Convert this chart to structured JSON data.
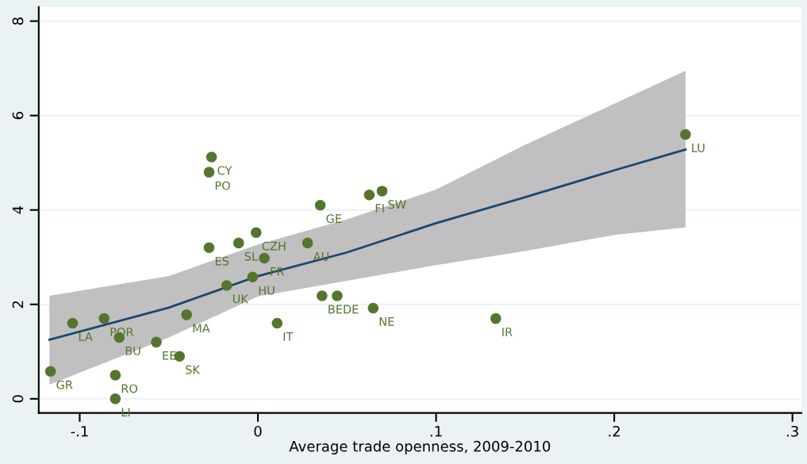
{
  "chart_data": {
    "type": "scatter",
    "xlabel": "Average trade openness, 2009-2010",
    "xlim": [
      -0.123,
      0.305
    ],
    "ylim": [
      -0.3,
      8.3
    ],
    "xticks": [
      {
        "value": -0.1,
        "label": "-.1"
      },
      0,
      {
        "value": 0.1,
        "label": ".1"
      },
      {
        "value": 0.2,
        "label": ".2"
      },
      {
        "value": 0.3,
        "label": ".3"
      }
    ],
    "yticks": [
      0,
      2,
      4,
      6,
      8
    ],
    "grid": "y",
    "series": [
      {
        "type": "line",
        "color": "#1a476f",
        "line_style": "solid",
        "marker": "none",
        "x": [
          -0.117,
          -0.05,
          0,
          0.05,
          0.1,
          0.15,
          0.2,
          0.24
        ],
        "values": [
          1.25,
          1.93,
          2.6,
          3.1,
          3.72,
          4.27,
          4.84,
          5.28
        ],
        "lower": [
          0.3,
          1.3,
          2.17,
          2.5,
          2.83,
          3.13,
          3.47,
          3.63
        ],
        "upper": [
          2.18,
          2.6,
          3.27,
          3.8,
          4.43,
          5.38,
          6.25,
          6.95
        ]
      },
      {
        "color": "#55752f",
        "marker": "circle",
        "x": [
          -0.1164,
          -0.104,
          -0.0863,
          -0.0778,
          -0.08,
          -0.08,
          -0.057,
          -0.044,
          -0.04,
          -0.0175,
          -0.0274,
          -0.026,
          -0.0274,
          -0.0108,
          -0.001,
          0.0036,
          -0.003,
          0.0108,
          0.0279,
          0.035,
          0.036,
          0.0445,
          0.0647,
          0.0625,
          0.0697,
          0.1335,
          0.24
        ],
        "values": [
          0.58,
          1.6,
          1.7,
          1.3,
          0.5,
          0,
          1.2,
          0.9,
          1.78,
          2.4,
          3.2,
          5.12,
          4.8,
          3.3,
          3.52,
          2.98,
          2.58,
          1.6,
          3.3,
          4.1,
          2.18,
          2.18,
          1.92,
          4.32,
          4.4,
          1.7,
          5.6
        ]
      }
    ],
    "annotations": [
      {
        "text": "GR",
        "x": -0.1164,
        "y": 0.58
      },
      {
        "text": "LA",
        "x": -0.104,
        "y": 1.6
      },
      {
        "text": "POR",
        "x": -0.0863,
        "y": 1.7
      },
      {
        "text": "BU",
        "x": -0.0778,
        "y": 1.3
      },
      {
        "text": "RO",
        "x": -0.08,
        "y": 0.5
      },
      {
        "text": "LI",
        "x": -0.08,
        "y": 0
      },
      {
        "text": "EE",
        "x": -0.057,
        "y": 1.2
      },
      {
        "text": "SK",
        "x": -0.044,
        "y": 0.9
      },
      {
        "text": "MA",
        "x": -0.04,
        "y": 1.78
      },
      {
        "text": "UK",
        "x": -0.0175,
        "y": 2.4
      },
      {
        "text": "ES",
        "x": -0.0274,
        "y": 3.2
      },
      {
        "text": "CY",
        "x": -0.026,
        "y": 5.12
      },
      {
        "text": "PO",
        "x": -0.0274,
        "y": 4.8
      },
      {
        "text": "SL",
        "x": -0.0108,
        "y": 3.3
      },
      {
        "text": "CZH",
        "x": -0.001,
        "y": 3.52
      },
      {
        "text": "FR",
        "x": 0.0036,
        "y": 2.98
      },
      {
        "text": "HU",
        "x": -0.003,
        "y": 2.58
      },
      {
        "text": "IT",
        "x": 0.0108,
        "y": 1.6
      },
      {
        "text": "AU",
        "x": 0.0279,
        "y": 3.3
      },
      {
        "text": "GE",
        "x": 0.035,
        "y": 4.1
      },
      {
        "text": "BE",
        "x": 0.036,
        "y": 2.18
      },
      {
        "text": "DE",
        "x": 0.0445,
        "y": 2.18
      },
      {
        "text": "NE",
        "x": 0.0647,
        "y": 1.92
      },
      {
        "text": "FI",
        "x": 0.0625,
        "y": 4.32
      },
      {
        "text": "SW",
        "x": 0.0697,
        "y": 4.4
      },
      {
        "text": "IR",
        "x": 0.1335,
        "y": 1.7
      },
      {
        "text": "LU",
        "x": 0.24,
        "y": 5.6
      }
    ]
  }
}
